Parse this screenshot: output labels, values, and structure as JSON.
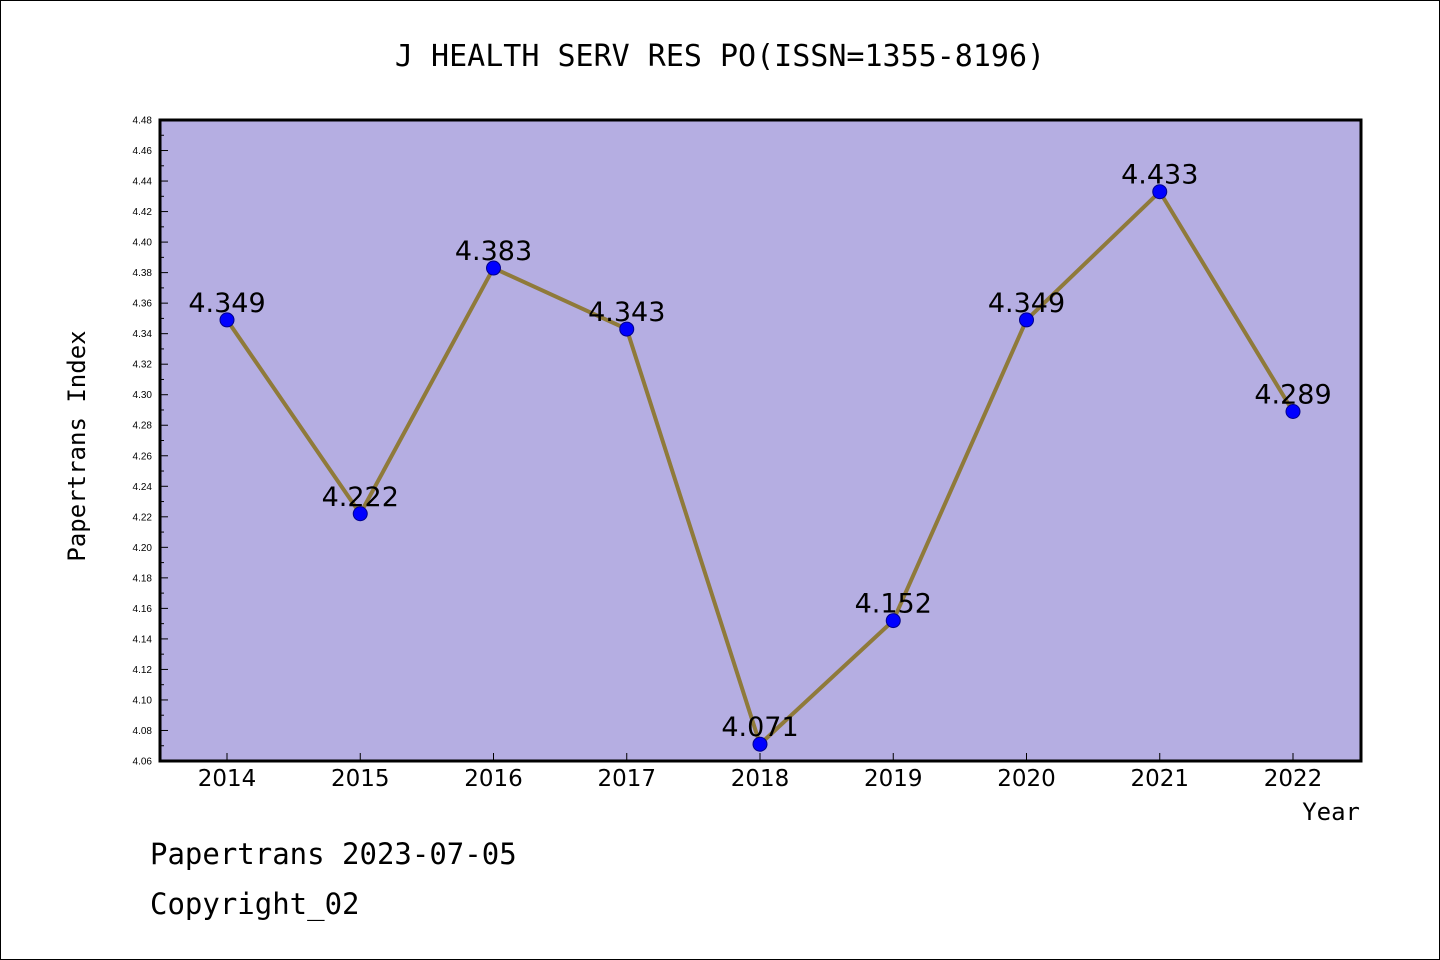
{
  "chart_data": {
    "type": "line",
    "title": "J HEALTH SERV RES PO(ISSN=1355-8196)",
    "xlabel": "Year",
    "ylabel": "Papertrans Index",
    "categories": [
      "2014",
      "2015",
      "2016",
      "2017",
      "2018",
      "2019",
      "2020",
      "2021",
      "2022"
    ],
    "values": [
      4.349,
      4.222,
      4.383,
      4.343,
      4.071,
      4.152,
      4.349,
      4.433,
      4.289
    ],
    "data_labels": [
      "4.349",
      "4.222",
      "4.383",
      "4.343",
      "4.071",
      "4.152",
      "4.349",
      "4.433",
      "4.289"
    ],
    "ylim": [
      4.06,
      4.48
    ],
    "yticks": [
      "4.06",
      "4.08",
      "4.10",
      "4.12",
      "4.14",
      "4.16",
      "4.18",
      "4.20",
      "4.22",
      "4.24",
      "4.26",
      "4.28",
      "4.30",
      "4.32",
      "4.34",
      "4.36",
      "4.38",
      "4.40",
      "4.42",
      "4.44",
      "4.46",
      "4.48"
    ],
    "grid": false,
    "colors": {
      "plot_background": "#b5aee2",
      "line": "#8f7a3a",
      "marker": "#0000ff"
    }
  },
  "footer": {
    "line1": "Papertrans 2023-07-05",
    "line2": "Copyright_02"
  }
}
